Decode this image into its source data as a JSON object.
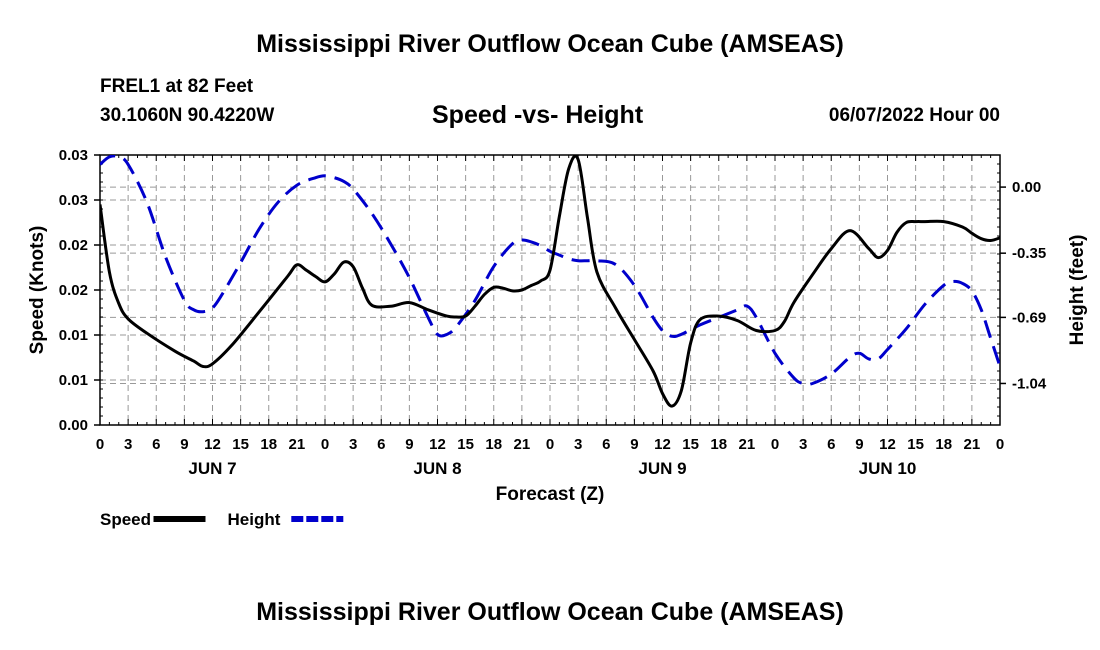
{
  "header": {
    "title": "Mississippi River Outflow Ocean Cube (AMSEAS)",
    "station": "FREL1 at 82 Feet",
    "coords": "30.1060N  90.4220W",
    "subtitle": "Speed -vs- Height",
    "datetime": "06/07/2022 Hour 00"
  },
  "footer": {
    "title": "Mississippi River Outflow Ocean Cube (AMSEAS)"
  },
  "chart_data": {
    "type": "line",
    "title": "Speed -vs- Height",
    "xlabel": "Forecast (Z)",
    "ylabel": "Speed (Knots)",
    "y2label": "Height (feet)",
    "x_range": [
      0,
      96
    ],
    "ylim": [
      0,
      0.03
    ],
    "y2lim": [
      -1.26,
      0.17
    ],
    "x_ticks": [
      0,
      3,
      6,
      9,
      12,
      15,
      18,
      21,
      24,
      27,
      30,
      33,
      36,
      39,
      42,
      45,
      48,
      51,
      54,
      57,
      60,
      63,
      66,
      69,
      72,
      75,
      78,
      81,
      84,
      87,
      90,
      93,
      96
    ],
    "x_tick_labels": [
      "0",
      "3",
      "6",
      "9",
      "12",
      "15",
      "18",
      "21",
      "0",
      "3",
      "6",
      "9",
      "12",
      "15",
      "18",
      "21",
      "0",
      "3",
      "6",
      "9",
      "12",
      "15",
      "18",
      "21",
      "0",
      "3",
      "6",
      "9",
      "12",
      "15",
      "18",
      "21",
      "0"
    ],
    "day_labels": [
      {
        "x": 12,
        "label": "JUN 7"
      },
      {
        "x": 36,
        "label": "JUN 8"
      },
      {
        "x": 60,
        "label": "JUN 9"
      },
      {
        "x": 84,
        "label": "JUN 10"
      }
    ],
    "y_ticks": [
      0,
      0.005,
      0.01,
      0.015,
      0.02,
      0.025,
      0.03
    ],
    "y_tick_labels": [
      "0.00",
      "0.01",
      "0.01",
      "0.02",
      "0.02",
      "0.03",
      "0.03"
    ],
    "y2_ticks": [
      0.0,
      -0.35,
      -0.69,
      -1.04
    ],
    "y2_tick_labels": [
      "0.00",
      "-0.35",
      "-0.69",
      "-1.04"
    ],
    "legend": [
      {
        "name": "Speed",
        "color": "#000000",
        "dash": "solid"
      },
      {
        "name": "Height",
        "color": "#0000cc",
        "dash": "dashed"
      }
    ],
    "series": [
      {
        "name": "Speed",
        "axis": "left",
        "color": "#000000",
        "dash": "solid",
        "x": [
          0,
          1,
          2,
          3,
          5,
          8,
          10,
          11,
          12,
          14,
          17,
          20,
          21,
          22,
          23,
          24,
          25,
          26,
          27,
          28,
          29,
          31,
          33,
          35,
          37,
          38,
          39,
          40,
          41,
          42,
          43,
          44,
          45,
          46,
          47,
          48,
          49,
          50,
          51,
          52,
          53,
          55,
          57,
          59,
          60,
          61,
          62,
          63,
          64,
          66,
          68,
          70,
          72,
          73,
          74,
          76,
          78,
          80,
          82,
          83,
          84,
          85,
          86,
          87,
          88,
          90,
          92,
          93,
          94,
          95,
          96
        ],
        "y": [
          0.0245,
          0.017,
          0.0135,
          0.0118,
          0.0102,
          0.0082,
          0.0071,
          0.0065,
          0.0068,
          0.0088,
          0.0126,
          0.0165,
          0.0178,
          0.0172,
          0.0165,
          0.0159,
          0.0168,
          0.0181,
          0.0176,
          0.0152,
          0.0133,
          0.0132,
          0.0136,
          0.0128,
          0.0121,
          0.012,
          0.0121,
          0.0132,
          0.0145,
          0.0153,
          0.0152,
          0.0149,
          0.015,
          0.0155,
          0.016,
          0.0172,
          0.0232,
          0.0285,
          0.0295,
          0.023,
          0.017,
          0.013,
          0.0095,
          0.006,
          0.0035,
          0.0021,
          0.0038,
          0.0091,
          0.0117,
          0.0121,
          0.0116,
          0.0105,
          0.0105,
          0.0115,
          0.0136,
          0.0167,
          0.0196,
          0.0216,
          0.0196,
          0.0186,
          0.0194,
          0.0214,
          0.0225,
          0.0226,
          0.0226,
          0.0226,
          0.022,
          0.0213,
          0.0207,
          0.0205,
          0.0208
        ]
      },
      {
        "name": "Height",
        "axis": "right",
        "color": "#0000cc",
        "dash": "dashed",
        "x": [
          0,
          1,
          2,
          3,
          5,
          7,
          9,
          10,
          11,
          12,
          13,
          15,
          17,
          19,
          21,
          23,
          24,
          25,
          26,
          27,
          29,
          31,
          33,
          35,
          36,
          37,
          38,
          40,
          42,
          44,
          45,
          46,
          47,
          48,
          49,
          50,
          51,
          52,
          53,
          55,
          57,
          59,
          60,
          61,
          62,
          64,
          66,
          68,
          69,
          70,
          72,
          74,
          75,
          76,
          78,
          80,
          81,
          82,
          83,
          84,
          86,
          88,
          90,
          91,
          92,
          93,
          94,
          95,
          96
        ],
        "y": [
          0.12,
          0.16,
          0.16,
          0.12,
          -0.08,
          -0.37,
          -0.6,
          -0.65,
          -0.66,
          -0.64,
          -0.57,
          -0.4,
          -0.22,
          -0.08,
          0.01,
          0.05,
          0.06,
          0.05,
          0.03,
          -0.01,
          -0.14,
          -0.3,
          -0.48,
          -0.69,
          -0.78,
          -0.78,
          -0.74,
          -0.6,
          -0.42,
          -0.3,
          -0.28,
          -0.29,
          -0.31,
          -0.34,
          -0.36,
          -0.38,
          -0.39,
          -0.39,
          -0.39,
          -0.41,
          -0.52,
          -0.69,
          -0.76,
          -0.79,
          -0.78,
          -0.73,
          -0.69,
          -0.65,
          -0.63,
          -0.69,
          -0.88,
          -1.01,
          -1.04,
          -1.04,
          -0.99,
          -0.9,
          -0.88,
          -0.91,
          -0.91,
          -0.86,
          -0.75,
          -0.62,
          -0.52,
          -0.5,
          -0.51,
          -0.55,
          -0.65,
          -0.8,
          -0.95
        ]
      }
    ]
  }
}
